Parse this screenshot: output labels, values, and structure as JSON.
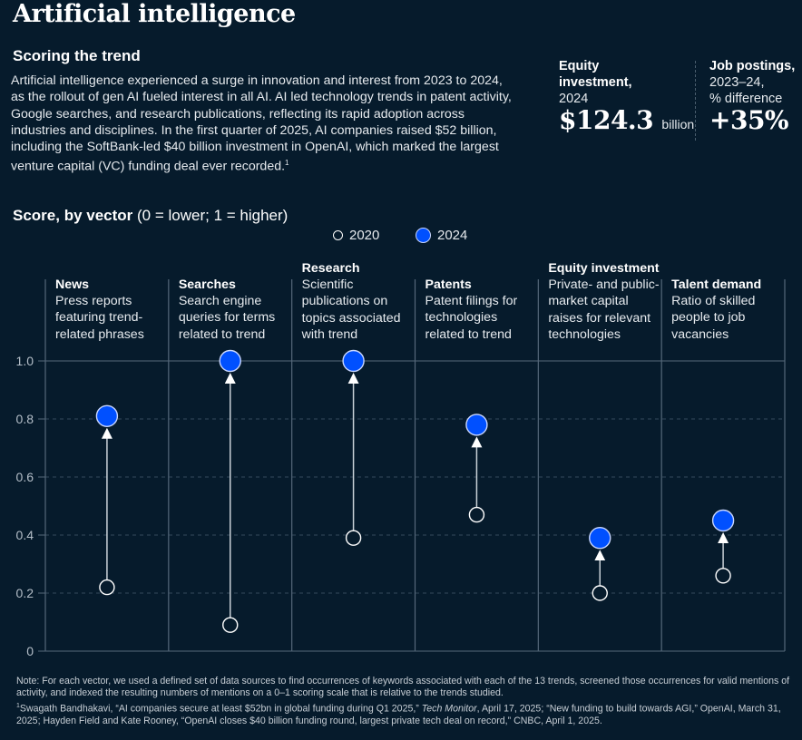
{
  "header": {
    "title": "Artificial intelligence",
    "subtitle": "Scoring the trend",
    "intro": "Artificial intelligence experienced a surge in innovation and interest from 2023 to 2024, as the rollout of gen AI fueled interest in all AI. AI led technology trends in patent activity, Google searches, and research publications, reflecting its rapid adoption across industries and disciplines. In the first quarter of 2025, AI companies raised $52 billion, including the SoftBank-led $40 billion investment in OpenAI, which marked the largest venture capital (VC) funding deal ever recorded.",
    "intro_footnote_mark": "1"
  },
  "stats": [
    {
      "label_bold_1": "Equity",
      "label_bold_2": "investment,",
      "label": "2024",
      "value": "$124.3",
      "unit": "billion"
    },
    {
      "label_bold_1": "Job postings,",
      "label_line_2": "2023–24,",
      "label": "% difference",
      "value": "+35%",
      "unit": ""
    }
  ],
  "chart_heading": {
    "bold": "Score, by vector",
    "rest": " (0 = lower; 1 = higher)"
  },
  "legend": [
    {
      "label": "2020",
      "style": "hollow"
    },
    {
      "label": "2024",
      "style": "filled",
      "color": "#0050ff"
    }
  ],
  "colors": {
    "background": "#061b2c",
    "accent_2024": "#0050ff",
    "grid": "#3c4f5f",
    "axis": "#8895a0"
  },
  "chart_data": {
    "type": "dumbbell",
    "title": "Score, by vector (0 = lower; 1 = higher)",
    "xlabel": "",
    "ylabel": "Score",
    "ylim": [
      0,
      1
    ],
    "yticks": [
      0,
      0.2,
      0.4,
      0.6,
      0.8,
      1.0
    ],
    "ytick_labels": [
      "0",
      "0.2",
      "0.4",
      "0.6",
      "0.8",
      "1.0"
    ],
    "grid": true,
    "legend_position": "top-center",
    "categories": [
      "News",
      "Searches",
      "Research",
      "Patents",
      "Equity investment",
      "Talent demand"
    ],
    "descriptions": [
      "Press reports featuring trend-related phrases",
      "Search engine queries for terms related to trend",
      "Scientific publications on topics associated with trend",
      "Patent filings for technologies related to trend",
      "Private- and public-market capital raises for relevant technologies",
      "Ratio of skilled people to job vacancies"
    ],
    "series": [
      {
        "name": "2020",
        "values": [
          0.22,
          0.09,
          0.39,
          0.47,
          0.2,
          0.26
        ]
      },
      {
        "name": "2024",
        "values": [
          0.81,
          1.0,
          1.0,
          0.78,
          0.39,
          0.45
        ]
      }
    ]
  },
  "footnotes": {
    "note": "Note: For each vector, we used a defined set of data sources to find occurrences of keywords associated with each of the 13 trends, screened those occurrences for valid mentions of activity, and indexed the resulting numbers of mentions on a 0–1 scoring scale that is relative to the trends studied.",
    "source_mark": "1",
    "source_part1": "Swagath Bandhakavi, “AI companies secure at least $52bn in global funding during Q1 2025,” ",
    "source_italic": "Tech Monitor",
    "source_part2": ", April 17, 2025; “New funding to build towards AGI,” OpenAI, March 31, 2025; Hayden Field and Kate Rooney, “OpenAI closes $40 billion funding round, largest private tech deal on record,” CNBC, April 1, 2025."
  }
}
